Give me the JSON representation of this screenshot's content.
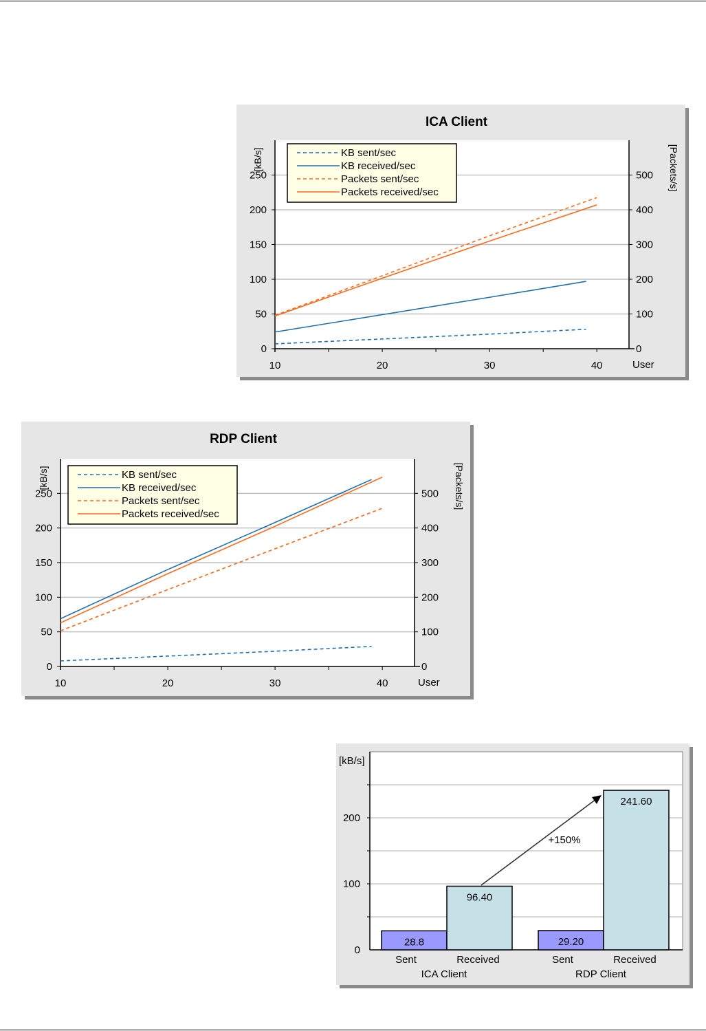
{
  "chart_data": [
    {
      "type": "line",
      "title": "ICA Client",
      "ylabel": "[kB/s]",
      "y2label": "[Packets/s]",
      "xlabel": "User",
      "xlim": [
        10,
        43
      ],
      "ylim": [
        0,
        300
      ],
      "y2lim": [
        0,
        600
      ],
      "xticks": [
        10,
        20,
        30,
        40
      ],
      "yticks": [
        0,
        50,
        100,
        150,
        200,
        250
      ],
      "y2ticks": [
        0,
        100,
        200,
        300,
        400,
        500
      ],
      "grid": true,
      "legend_position": "top-left",
      "series": [
        {
          "name": "KB sent/sec",
          "axis": "left",
          "style": "dashed",
          "color": "#1f6fae",
          "x": [
            10,
            20,
            30,
            39
          ],
          "y": [
            7,
            14,
            21,
            28
          ]
        },
        {
          "name": "KB received/sec",
          "axis": "left",
          "style": "solid",
          "color": "#1f6fae",
          "x": [
            10,
            20,
            30,
            39
          ],
          "y": [
            24,
            49,
            74,
            97
          ]
        },
        {
          "name": "Packets sent/sec",
          "axis": "right",
          "style": "dashed",
          "color": "#ff6a1a",
          "x": [
            10,
            20,
            30,
            40
          ],
          "y": [
            96,
            210,
            325,
            435
          ]
        },
        {
          "name": "Packets received/sec",
          "axis": "right",
          "style": "solid",
          "color": "#ff6a1a",
          "x": [
            10,
            20,
            30,
            40
          ],
          "y": [
            94,
            203,
            310,
            414
          ]
        }
      ]
    },
    {
      "type": "line",
      "title": "RDP Client",
      "ylabel": "[kB/s]",
      "y2label": "[Packets/s]",
      "xlabel": "User",
      "xlim": [
        10,
        43
      ],
      "ylim": [
        0,
        300
      ],
      "y2lim": [
        0,
        600
      ],
      "xticks": [
        10,
        20,
        30,
        40
      ],
      "yticks": [
        0,
        50,
        100,
        150,
        200,
        250
      ],
      "y2ticks": [
        0,
        100,
        200,
        300,
        400,
        500
      ],
      "grid": true,
      "legend_position": "top-left",
      "series": [
        {
          "name": "KB sent/sec",
          "axis": "left",
          "style": "dashed",
          "color": "#1f6fae",
          "x": [
            10,
            20,
            30,
            39
          ],
          "y": [
            8,
            15,
            22,
            29
          ]
        },
        {
          "name": "KB received/sec",
          "axis": "left",
          "style": "solid",
          "color": "#1f6fae",
          "x": [
            10,
            20,
            30,
            39
          ],
          "y": [
            69,
            140,
            208,
            270
          ]
        },
        {
          "name": "Packets sent/sec",
          "axis": "right",
          "style": "dashed",
          "color": "#ff6a1a",
          "x": [
            10,
            20,
            30,
            40
          ],
          "y": [
            103,
            222,
            340,
            457
          ]
        },
        {
          "name": "Packets received/sec",
          "axis": "right",
          "style": "solid",
          "color": "#ff6a1a",
          "x": [
            10,
            20,
            30,
            40
          ],
          "y": [
            126,
            268,
            405,
            547
          ]
        }
      ]
    },
    {
      "type": "bar",
      "ylabel": "[kB/s]",
      "ylim": [
        0,
        300
      ],
      "yticks": [
        0,
        100,
        200
      ],
      "grid": true,
      "groups": [
        "ICA Client",
        "RDP Client"
      ],
      "categories": [
        "Sent",
        "Received"
      ],
      "series": [
        {
          "name": "Sent",
          "color": "#9999ff",
          "values": [
            28.8,
            29.2
          ],
          "labels": [
            "28.8",
            "29.20"
          ]
        },
        {
          "name": "Received",
          "color": "#c6e0e8",
          "values": [
            96.4,
            241.6
          ],
          "labels": [
            "96.40",
            "241.60"
          ]
        }
      ],
      "annotation": "+150%"
    }
  ]
}
